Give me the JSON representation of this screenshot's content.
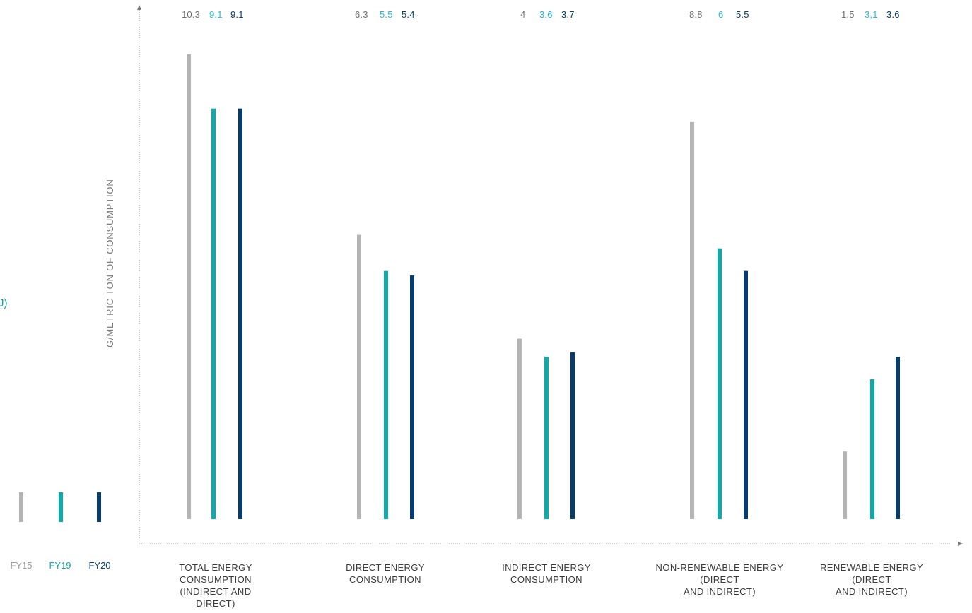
{
  "colors": {
    "FY15": "#b4b4b4",
    "FY19": "#11a9aa",
    "FY20": "#063c70",
    "FY19_label": "#1dbdd6"
  },
  "left_fragment": "J)",
  "legend": [
    "FY15",
    "FY19",
    "FY20"
  ],
  "chart_data": {
    "type": "bar",
    "ylabel": "G/METRIC TON OF CONSUMPTION",
    "ylim": [
      0,
      10.3
    ],
    "categories": [
      [
        "TOTAL ENERGY",
        "CONSUMPTION",
        "(INDIRECT AND",
        "DIRECT)"
      ],
      [
        "DIRECT ENERGY",
        "CONSUMPTION"
      ],
      [
        "INDIRECT ENERGY",
        "CONSUMPTION"
      ],
      [
        "NON-RENEWABLE ENERGY",
        "(DIRECT",
        "AND INDIRECT)"
      ],
      [
        "RENEWABLE ENERGY",
        "(DIRECT",
        "AND INDIRECT)"
      ]
    ],
    "series": [
      {
        "name": "FY15",
        "values": [
          10.3,
          6.3,
          4,
          8.8,
          1.5
        ],
        "labels": [
          "10.3",
          "6.3",
          "4",
          "8.8",
          "1.5"
        ]
      },
      {
        "name": "FY19",
        "values": [
          9.1,
          5.5,
          3.6,
          6,
          3.1
        ],
        "labels": [
          "9.1",
          "5.5",
          "3.6",
          "6",
          "3,1"
        ]
      },
      {
        "name": "FY20",
        "values": [
          9.1,
          5.4,
          3.7,
          5.5,
          3.6
        ],
        "labels": [
          "9.1",
          "5.4",
          "3.7",
          "5.5",
          "3.6"
        ]
      }
    ]
  }
}
